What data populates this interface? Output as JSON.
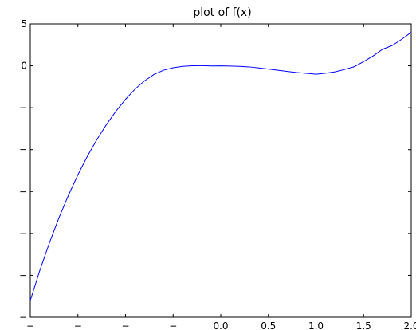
{
  "chart_data": {
    "type": "line",
    "title": "plot of f(x)",
    "xlabel": "",
    "ylabel": "",
    "xlim": [
      -2.0,
      2.0
    ],
    "ylim": [
      -30,
      5
    ],
    "x_ticks": [
      -2.0,
      -1.5,
      -1.0,
      -0.5,
      0.0,
      0.5,
      1.0,
      1.5,
      2.0
    ],
    "x_tick_labels": [
      "−",
      "−",
      "−",
      "−",
      "0.0",
      "0.5",
      "1.0",
      "1.5",
      "2.0"
    ],
    "y_ticks": [
      -30,
      -25,
      -20,
      -15,
      -10,
      -5,
      0,
      5
    ],
    "y_tick_labels": [
      "−",
      "−",
      "−",
      "−",
      "−",
      "−",
      "0",
      "5"
    ],
    "grid": false,
    "legend": "none",
    "series": [
      {
        "color": "#0000ff",
        "x": [
          -2.0,
          -1.9,
          -1.8,
          -1.7,
          -1.6,
          -1.5,
          -1.4,
          -1.3,
          -1.2,
          -1.1,
          -1.0,
          -0.9,
          -0.8,
          -0.7,
          -0.6,
          -0.5,
          -0.4,
          -0.3,
          -0.2,
          -0.1,
          0.0,
          0.1,
          0.2,
          0.3,
          0.4,
          0.5,
          0.6,
          0.7,
          0.8,
          0.9,
          1.0,
          1.1,
          1.2,
          1.3,
          1.4,
          1.5,
          1.6,
          1.7,
          1.8,
          1.9,
          2.0
        ],
        "y": [
          -28.0,
          -24.42,
          -21.15,
          -18.16,
          -15.46,
          -13.0,
          -10.78,
          -8.79,
          -7.0,
          -5.41,
          -4.0,
          -2.78,
          -1.79,
          -1.02,
          -0.52,
          -0.23,
          -0.07,
          0.01,
          0.02,
          -0.02,
          0.0,
          -0.03,
          -0.06,
          -0.13,
          -0.25,
          -0.38,
          -0.53,
          -0.67,
          -0.8,
          -0.9,
          -1.0,
          -0.89,
          -0.72,
          -0.44,
          -0.11,
          0.5,
          1.18,
          1.98,
          2.42,
          3.17,
          4.0
        ]
      }
    ]
  }
}
